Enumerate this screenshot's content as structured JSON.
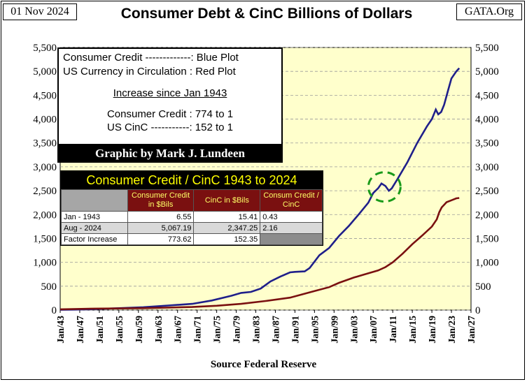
{
  "header": {
    "date": "01 Nov 2024",
    "title": "Consumer Debt & CinC Billions of Dollars",
    "site": "GATA.Org"
  },
  "info_box": {
    "line1": "Consumer Credit -------------: Blue Plot",
    "line2": "US Currency in Circulation : Red Plot",
    "line3": "Increase since Jan 1943",
    "line4": "Consumer Credit : 774 to 1",
    "line5": "US CinC -----------: 152 to 1"
  },
  "credit": "Graphic by Mark J. Lundeen",
  "table": {
    "title": "Consumer Credit / CinC 1943 to 2024",
    "col1": "Consumer Credit in $Bils",
    "col2": "CinC in $Bils",
    "col3": "Consum Credit / CinC",
    "rows": [
      {
        "label": "Jan - 1943",
        "cc": "6.55",
        "cinc": "15.41",
        "ratio": "0.43"
      },
      {
        "label": "Aug - 2024",
        "cc": "5,067.19",
        "cinc": "2,347.25",
        "ratio": "2.16"
      },
      {
        "label": "Factor Increase",
        "cc": "773.62",
        "cinc": "152.35",
        "ratio": ""
      }
    ]
  },
  "footer": {
    "source": "Source Federal Reserve"
  },
  "colors": {
    "blue_plot": "#1f1f8a",
    "red_plot": "#7a1010",
    "plot_bg": "#ffffcc",
    "circle": "#1a9a1a"
  },
  "chart_data": {
    "type": "line",
    "title": "Consumer Debt & CinC Billions of Dollars",
    "xlabel": "Source Federal Reserve",
    "ylabel": "",
    "xlim": [
      1943,
      2027
    ],
    "ylim": [
      0,
      5500
    ],
    "y_ticks": [
      0,
      500,
      1000,
      1500,
      2000,
      2500,
      3000,
      3500,
      4000,
      4500,
      5000,
      5500
    ],
    "y_tick_labels": [
      "0",
      "500",
      "1,000",
      "1,500",
      "2,000",
      "2,500",
      "3,000",
      "3,500",
      "4,000",
      "4,500",
      "5,000",
      "5,500"
    ],
    "x_ticks": [
      1943,
      1947,
      1951,
      1955,
      1959,
      1963,
      1967,
      1971,
      1975,
      1979,
      1983,
      1987,
      1991,
      1995,
      1999,
      2003,
      2007,
      2011,
      2015,
      2019,
      2023,
      2027
    ],
    "x_tick_labels": [
      "Jan/43",
      "Jan/47",
      "Jan/51",
      "Jan/55",
      "Jan/59",
      "Jan/63",
      "Jan/67",
      "Jan/71",
      "Jan/75",
      "Jan/79",
      "Jan/83",
      "Jan/87",
      "Jan/91",
      "Jan/95",
      "Jan/99",
      "Jan/03",
      "Jan/07",
      "Jan/11",
      "Jan/15",
      "Jan/19",
      "Jan/23",
      "Jan/27"
    ],
    "series": [
      {
        "name": "Consumer Credit",
        "color": "#1f1f8a",
        "x": [
          1943,
          1946,
          1950,
          1955,
          1960,
          1965,
          1970,
          1974,
          1978,
          1980,
          1982,
          1984,
          1986,
          1988,
          1990,
          1991,
          1993,
          1994,
          1996,
          1998,
          2000,
          2002,
          2004,
          2006,
          2007,
          2008,
          2008.7,
          2009.5,
          2010.2,
          2010.8,
          2012,
          2014,
          2016,
          2018,
          2019,
          2019.8,
          2020.3,
          2020.9,
          2021.5,
          2022.3,
          2023,
          2024,
          2024.6
        ],
        "y": [
          6.55,
          10,
          20,
          40,
          60,
          95,
          130,
          200,
          300,
          360,
          380,
          450,
          600,
          700,
          790,
          800,
          810,
          880,
          1150,
          1300,
          1550,
          1760,
          2000,
          2250,
          2450,
          2550,
          2650,
          2600,
          2500,
          2550,
          2750,
          3100,
          3500,
          3850,
          4000,
          4200,
          4100,
          4150,
          4300,
          4600,
          4850,
          5000,
          5067.19
        ]
      },
      {
        "name": "US Currency in Circulation",
        "color": "#7a1010",
        "x": [
          1943,
          1950,
          1960,
          1970,
          1975,
          1980,
          1985,
          1990,
          1995,
          1998,
          2000,
          2003,
          2005,
          2008,
          2009.5,
          2011,
          2013,
          2015,
          2017,
          2019,
          2020,
          2020.5,
          2021,
          2022,
          2023,
          2024,
          2024.6
        ],
        "y": [
          15.41,
          30,
          40,
          65,
          90,
          130,
          190,
          260,
          400,
          480,
          570,
          680,
          740,
          830,
          900,
          1000,
          1180,
          1380,
          1560,
          1750,
          1900,
          2050,
          2150,
          2260,
          2300,
          2340,
          2347.25
        ]
      }
    ],
    "annotations": [
      "green dashed circle around 2008-2010 consumer credit dip"
    ]
  }
}
